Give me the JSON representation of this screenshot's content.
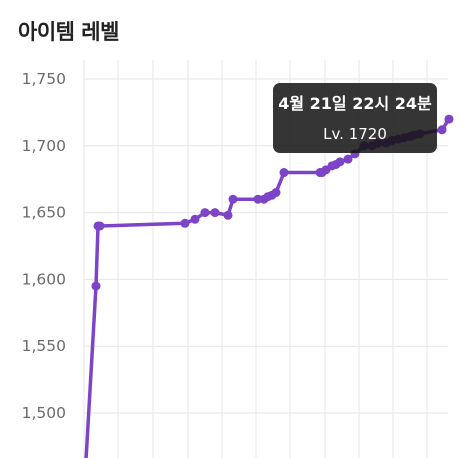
{
  "header": {
    "title": "아이템 레벨"
  },
  "chart_data": {
    "type": "line",
    "title": "아이템 레벨",
    "xlabel": "",
    "ylabel": "",
    "ylim": [
      1465,
      1750
    ],
    "y_ticks": [
      1500,
      1550,
      1600,
      1650,
      1700,
      1750
    ],
    "y_tick_labels": [
      "1,500",
      "1,550",
      "1,600",
      "1,650",
      "1,700",
      "1,750"
    ],
    "grid": true,
    "line_color": "#7e44c8",
    "series": [
      {
        "values": [
          1465,
          1595,
          1640,
          1640,
          1642,
          1645,
          1650,
          1650,
          1648,
          1660,
          1660,
          1660,
          1662,
          1663,
          1665,
          1680,
          1680,
          1680,
          1682,
          1685,
          1686,
          1688,
          1690,
          1694,
          1700,
          1700,
          1702,
          1702,
          1704,
          1705,
          1706,
          1707,
          1708,
          1709,
          1712,
          1720
        ]
      }
    ],
    "tooltip": {
      "title": "4월 21일 22시 24분",
      "label": "Lv. 1720"
    }
  }
}
